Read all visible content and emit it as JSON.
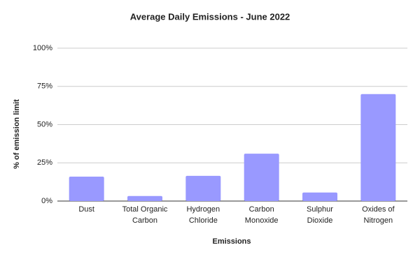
{
  "chart_data": {
    "type": "bar",
    "title": "Average Daily Emissions - June 2022",
    "x_label": "Emissions",
    "y_label": "% of emission limit",
    "categories": [
      "Dust",
      "Total Organic Carbon",
      "Hydrogen Chloride",
      "Carbon Monoxide",
      "Sulphur Dioxide",
      "Oxides of Nitrogen"
    ],
    "values": [
      16,
      3.3,
      16.5,
      31,
      5.6,
      70
    ],
    "color": "#9999ff",
    "ylim": [
      0,
      100
    ],
    "yticks": [
      {
        "value": 0,
        "label": "0%"
      },
      {
        "value": 25,
        "label": "25%"
      },
      {
        "value": 50,
        "label": "50%"
      },
      {
        "value": 75,
        "label": "75%"
      },
      {
        "value": 100,
        "label": "100%"
      }
    ],
    "grid": true
  }
}
